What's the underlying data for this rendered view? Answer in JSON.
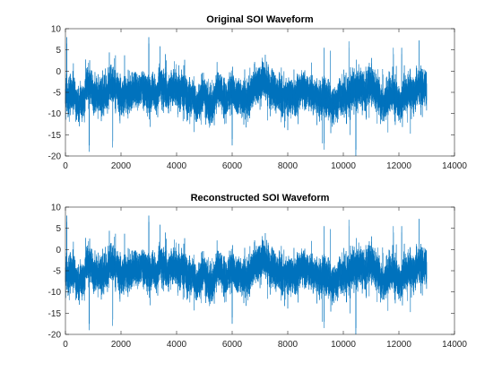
{
  "figure": {
    "background": "#ffffff"
  },
  "chart_data": [
    {
      "type": "line",
      "title": "Original SOI Waveform",
      "xlabel": "",
      "ylabel": "",
      "xlim": [
        0,
        14000
      ],
      "ylim": [
        -20,
        10
      ],
      "xticks": [
        0,
        2000,
        4000,
        6000,
        8000,
        10000,
        12000,
        14000
      ],
      "yticks": [
        -20,
        -15,
        -10,
        -5,
        0,
        5,
        10
      ],
      "grid": false,
      "n_samples": 13000,
      "series": [
        {
          "color": "#0072bd",
          "mean": -5.5,
          "typical_range": [
            -12,
            2
          ],
          "overall_range": [
            -20,
            8
          ],
          "notable_peaks": [
            {
              "x": 50,
              "y": 8
            },
            {
              "x": 3000,
              "y": 8
            },
            {
              "x": 9300,
              "y": 7
            },
            {
              "x": 10200,
              "y": 7
            },
            {
              "x": 11800,
              "y": 5.5
            },
            {
              "x": 12100,
              "y": 5.5
            }
          ],
          "notable_troughs": [
            {
              "x": 850,
              "y": -19
            },
            {
              "x": 1700,
              "y": -18
            },
            {
              "x": 6000,
              "y": -17.5
            },
            {
              "x": 9300,
              "y": -18.5
            },
            {
              "x": 10450,
              "y": -20
            }
          ]
        }
      ]
    },
    {
      "type": "line",
      "title": "Reconstructed SOI Waveform",
      "xlabel": "",
      "ylabel": "",
      "xlim": [
        0,
        14000
      ],
      "ylim": [
        -20,
        10
      ],
      "xticks": [
        0,
        2000,
        4000,
        6000,
        8000,
        10000,
        12000,
        14000
      ],
      "yticks": [
        -20,
        -15,
        -10,
        -5,
        0,
        5,
        10
      ],
      "grid": false,
      "n_samples": 13000,
      "series": [
        {
          "color": "#0072bd",
          "mean": -5.5,
          "typical_range": [
            -12,
            2
          ],
          "overall_range": [
            -20,
            8
          ],
          "notable_peaks": [
            {
              "x": 50,
              "y": 8
            },
            {
              "x": 3000,
              "y": 8
            },
            {
              "x": 9300,
              "y": 7
            },
            {
              "x": 10200,
              "y": 7
            },
            {
              "x": 11800,
              "y": 5.5
            },
            {
              "x": 12100,
              "y": 5.5
            }
          ],
          "notable_troughs": [
            {
              "x": 850,
              "y": -19
            },
            {
              "x": 1700,
              "y": -18
            },
            {
              "x": 6000,
              "y": -17.5
            },
            {
              "x": 9300,
              "y": -18.5
            },
            {
              "x": 10450,
              "y": -20
            }
          ]
        }
      ]
    }
  ]
}
